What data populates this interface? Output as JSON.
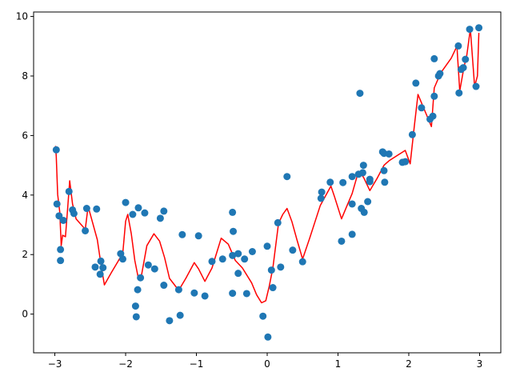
{
  "chart_data": {
    "type": "scatter",
    "title": "",
    "xlabel": "",
    "ylabel": "",
    "xlim": [
      -3.3,
      3.3
    ],
    "ylim": [
      -1.3,
      10.15
    ],
    "grid": false,
    "x_ticks": [
      -3,
      -2,
      -1,
      0,
      1,
      2,
      3
    ],
    "y_ticks": [
      0,
      2,
      4,
      6,
      8,
      10
    ],
    "x_tick_labels": [
      "−3",
      "−2",
      "−1",
      "0",
      "1",
      "2",
      "3"
    ],
    "y_tick_labels": [
      "0",
      "2",
      "4",
      "6",
      "8",
      "10"
    ],
    "series": [
      {
        "kind": "scatter",
        "color": "#1f77b4",
        "points": [
          [
            -2.98,
            5.52
          ],
          [
            -2.97,
            3.7
          ],
          [
            -2.94,
            3.3
          ],
          [
            -2.92,
            2.17
          ],
          [
            -2.92,
            1.8
          ],
          [
            -2.88,
            3.15
          ],
          [
            -2.8,
            4.12
          ],
          [
            -2.75,
            3.5
          ],
          [
            -2.73,
            3.38
          ],
          [
            -2.57,
            2.8
          ],
          [
            -2.55,
            3.55
          ],
          [
            -2.41,
            3.53
          ],
          [
            -2.43,
            1.58
          ],
          [
            -2.36,
            1.34
          ],
          [
            -2.35,
            1.78
          ],
          [
            -2.32,
            1.56
          ],
          [
            -2.07,
            2.03
          ],
          [
            -2.04,
            1.85
          ],
          [
            -2.0,
            3.75
          ],
          [
            -1.9,
            3.35
          ],
          [
            -1.86,
            0.27
          ],
          [
            -1.85,
            -0.09
          ],
          [
            -1.83,
            0.82
          ],
          [
            -1.82,
            3.57
          ],
          [
            -1.79,
            1.22
          ],
          [
            -1.73,
            3.4
          ],
          [
            -1.68,
            1.65
          ],
          [
            -1.59,
            1.52
          ],
          [
            -1.51,
            3.22
          ],
          [
            -1.46,
            3.46
          ],
          [
            -1.46,
            0.97
          ],
          [
            -1.38,
            -0.22
          ],
          [
            -1.25,
            0.82
          ],
          [
            -1.23,
            -0.04
          ],
          [
            -1.2,
            2.67
          ],
          [
            -1.03,
            0.71
          ],
          [
            -0.97,
            2.63
          ],
          [
            -0.88,
            0.61
          ],
          [
            -0.78,
            1.77
          ],
          [
            -0.63,
            1.85
          ],
          [
            -0.49,
            3.42
          ],
          [
            -0.49,
            1.97
          ],
          [
            -0.48,
            2.78
          ],
          [
            -0.49,
            0.7
          ],
          [
            -0.41,
            1.37
          ],
          [
            -0.41,
            2.03
          ],
          [
            -0.32,
            1.85
          ],
          [
            -0.29,
            0.69
          ],
          [
            -0.21,
            2.1
          ],
          [
            -0.06,
            -0.07
          ],
          [
            0.0,
            2.28
          ],
          [
            0.01,
            -0.77
          ],
          [
            0.06,
            1.48
          ],
          [
            0.08,
            0.89
          ],
          [
            0.15,
            3.07
          ],
          [
            0.19,
            1.58
          ],
          [
            0.28,
            4.62
          ],
          [
            0.36,
            2.15
          ],
          [
            0.5,
            1.76
          ],
          [
            0.76,
            3.89
          ],
          [
            0.77,
            4.1
          ],
          [
            0.89,
            4.43
          ],
          [
            1.05,
            2.45
          ],
          [
            1.07,
            4.42
          ],
          [
            1.2,
            2.68
          ],
          [
            1.2,
            4.62
          ],
          [
            1.2,
            3.7
          ],
          [
            1.29,
            4.7
          ],
          [
            1.31,
            7.42
          ],
          [
            1.33,
            3.55
          ],
          [
            1.35,
            4.75
          ],
          [
            1.36,
            5.0
          ],
          [
            1.37,
            3.42
          ],
          [
            1.42,
            3.78
          ],
          [
            1.45,
            4.53
          ],
          [
            1.45,
            4.45
          ],
          [
            1.63,
            5.45
          ],
          [
            1.65,
            5.4
          ],
          [
            1.65,
            4.82
          ],
          [
            1.66,
            4.43
          ],
          [
            1.72,
            5.38
          ],
          [
            1.91,
            5.1
          ],
          [
            1.95,
            5.12
          ],
          [
            2.05,
            6.03
          ],
          [
            2.1,
            7.76
          ],
          [
            2.18,
            6.93
          ],
          [
            2.3,
            6.55
          ],
          [
            2.34,
            6.65
          ],
          [
            2.36,
            7.32
          ],
          [
            2.36,
            8.58
          ],
          [
            2.42,
            8.0
          ],
          [
            2.44,
            8.08
          ],
          [
            2.7,
            9.01
          ],
          [
            2.71,
            7.43
          ],
          [
            2.74,
            8.22
          ],
          [
            2.77,
            8.28
          ],
          [
            2.8,
            8.56
          ],
          [
            2.86,
            9.57
          ],
          [
            2.95,
            7.65
          ],
          [
            2.99,
            9.62
          ]
        ]
      },
      {
        "kind": "line",
        "color": "#ff0000",
        "points": [
          [
            -2.99,
            5.65
          ],
          [
            -2.98,
            5.3
          ],
          [
            -2.96,
            4.02
          ],
          [
            -2.93,
            3.42
          ],
          [
            -2.91,
            2.3
          ],
          [
            -2.89,
            2.65
          ],
          [
            -2.85,
            2.6
          ],
          [
            -2.82,
            3.52
          ],
          [
            -2.79,
            4.48
          ],
          [
            -2.75,
            3.7
          ],
          [
            -2.7,
            3.2
          ],
          [
            -2.57,
            2.85
          ],
          [
            -2.53,
            3.62
          ],
          [
            -2.4,
            2.5
          ],
          [
            -2.35,
            1.7
          ],
          [
            -2.3,
            0.98
          ],
          [
            -2.2,
            1.4
          ],
          [
            -2.1,
            1.8
          ],
          [
            -2.04,
            2.05
          ],
          [
            -2.0,
            3.12
          ],
          [
            -1.97,
            3.35
          ],
          [
            -1.92,
            2.7
          ],
          [
            -1.87,
            1.8
          ],
          [
            -1.82,
            1.2
          ],
          [
            -1.78,
            1.25
          ],
          [
            -1.7,
            2.3
          ],
          [
            -1.6,
            2.7
          ],
          [
            -1.52,
            2.45
          ],
          [
            -1.45,
            1.9
          ],
          [
            -1.38,
            1.2
          ],
          [
            -1.25,
            0.8
          ],
          [
            -1.15,
            1.2
          ],
          [
            -1.03,
            1.73
          ],
          [
            -0.97,
            1.52
          ],
          [
            -0.88,
            1.1
          ],
          [
            -0.78,
            1.55
          ],
          [
            -0.65,
            2.55
          ],
          [
            -0.55,
            2.35
          ],
          [
            -0.45,
            1.8
          ],
          [
            -0.35,
            1.55
          ],
          [
            -0.22,
            1.05
          ],
          [
            -0.15,
            0.65
          ],
          [
            -0.08,
            0.38
          ],
          [
            -0.02,
            0.45
          ],
          [
            0.03,
            0.95
          ],
          [
            0.08,
            1.55
          ],
          [
            0.16,
            3.05
          ],
          [
            0.22,
            3.35
          ],
          [
            0.28,
            3.55
          ],
          [
            0.35,
            3.1
          ],
          [
            0.42,
            2.5
          ],
          [
            0.5,
            1.85
          ],
          [
            0.6,
            2.55
          ],
          [
            0.75,
            3.65
          ],
          [
            0.9,
            4.3
          ],
          [
            0.95,
            3.95
          ],
          [
            1.05,
            3.2
          ],
          [
            1.12,
            3.6
          ],
          [
            1.2,
            4.05
          ],
          [
            1.29,
            4.8
          ],
          [
            1.36,
            4.6
          ],
          [
            1.45,
            4.15
          ],
          [
            1.55,
            4.55
          ],
          [
            1.65,
            5.0
          ],
          [
            1.72,
            5.15
          ],
          [
            1.85,
            5.35
          ],
          [
            1.95,
            5.5
          ],
          [
            2.02,
            5.05
          ],
          [
            2.08,
            6.35
          ],
          [
            2.13,
            7.38
          ],
          [
            2.25,
            6.7
          ],
          [
            2.32,
            6.3
          ],
          [
            2.36,
            7.6
          ],
          [
            2.45,
            8.1
          ],
          [
            2.6,
            8.6
          ],
          [
            2.68,
            9.0
          ],
          [
            2.72,
            7.5
          ],
          [
            2.78,
            8.3
          ],
          [
            2.82,
            8.7
          ],
          [
            2.87,
            9.58
          ],
          [
            2.93,
            7.65
          ],
          [
            2.97,
            8.0
          ],
          [
            2.99,
            9.45
          ]
        ]
      }
    ]
  }
}
